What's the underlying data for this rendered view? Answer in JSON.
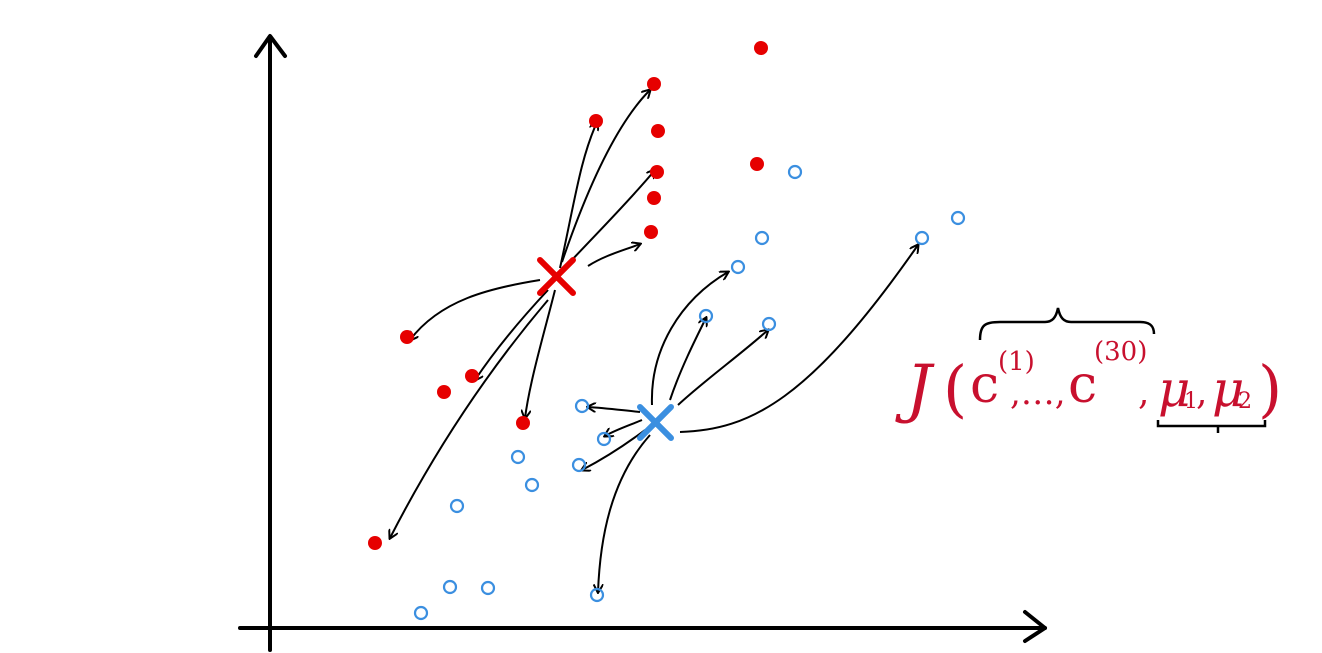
{
  "colors": {
    "axis": "#000000",
    "red_point": "#e60000",
    "blue_point": "#3b8fe0",
    "arrow": "#000000",
    "red_centroid": "#e60000",
    "blue_centroid": "#3b8fe0",
    "formula": "#c8102e"
  },
  "formula": {
    "J": "J",
    "open_paren": "(",
    "c1_base": "c",
    "c1_sup": "(1)",
    "ellipsis": ",…,",
    "c30_base": "c",
    "c30_sup": "(30)",
    "sep": ",",
    "mu1": "μ",
    "mu1_sub": "1",
    "comma2": ",",
    "mu2": "μ",
    "mu2_sub": "2",
    "close_paren": ")"
  },
  "clusters": {
    "red": {
      "name": "red cluster",
      "centroid_label": "x"
    },
    "blue": {
      "name": "blue cluster",
      "centroid_label": "x"
    }
  }
}
